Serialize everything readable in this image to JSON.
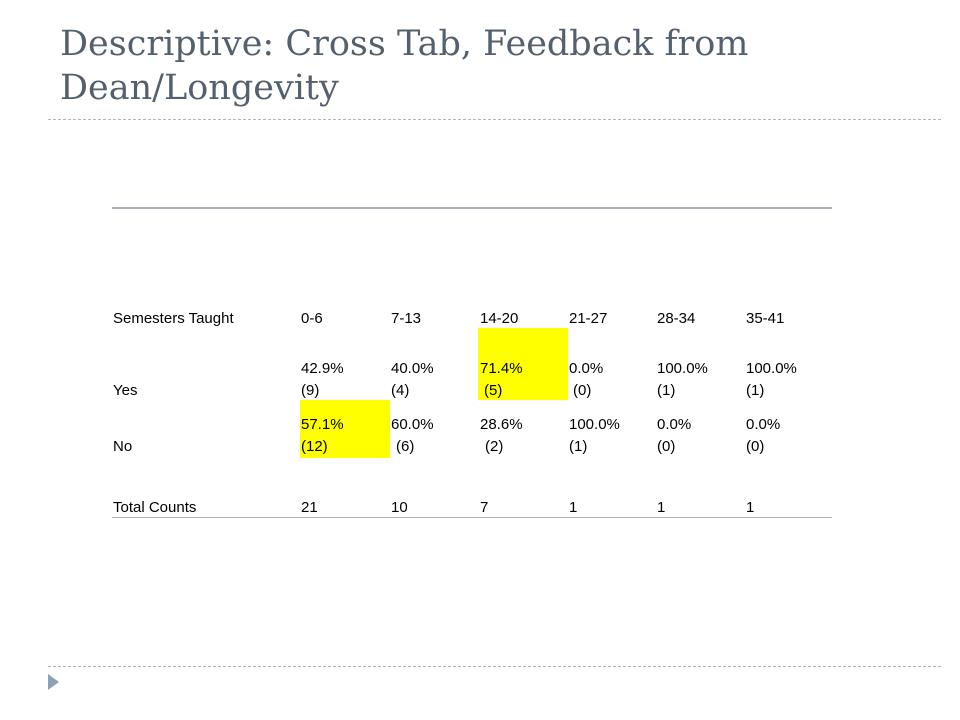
{
  "slide": {
    "title_line1": "Descriptive: Cross Tab, Feedback from",
    "title_line2": "Dean/Longevity"
  },
  "table": {
    "header": {
      "label": "Semesters Taught",
      "columns": [
        "0-6",
        "7-13",
        "14-20",
        "21-27",
        "28-34",
        "35-41"
      ]
    },
    "rows": [
      {
        "label": "Yes",
        "percents": [
          "42.9%",
          "40.0%",
          "71.4%",
          "0.0%",
          "100.0%",
          "100.0%"
        ],
        "counts": [
          "(9)",
          "(4)",
          "(5)",
          "(0)",
          "(1)",
          "(1)"
        ]
      },
      {
        "label": "No",
        "percents": [
          "57.1%",
          "60.0%",
          "28.6%",
          "100.0%",
          "0.0%",
          "0.0%"
        ],
        "counts": [
          "(12)",
          "(6)",
          "(2)",
          "(1)",
          "(0)",
          "(0)"
        ]
      }
    ],
    "totals": {
      "label": "Total Counts",
      "values": [
        "21",
        "10",
        "7",
        "1",
        "1",
        "1"
      ]
    },
    "highlight_color": "#ffff00"
  }
}
